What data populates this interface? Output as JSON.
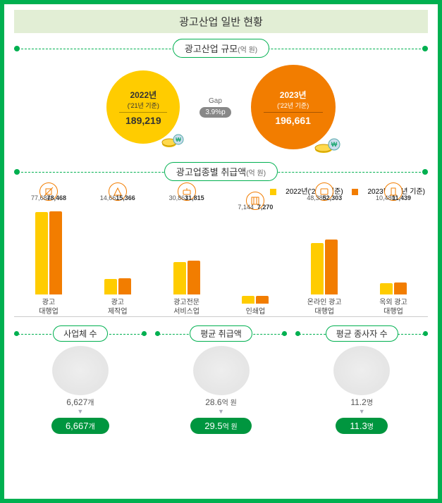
{
  "title": "광고산업 일반 현황",
  "section1": {
    "heading": "광고산업 규모",
    "unit": "(억 원)",
    "left": {
      "year": "2022년",
      "basis": "('21년 기준)",
      "value": "189,219",
      "bg": "#ffcc00"
    },
    "right": {
      "year": "2023년",
      "basis": "('22년 기준)",
      "value": "196,661",
      "bg": "#f27d00"
    },
    "gap_label": "Gap",
    "gap_value": "3.9%p"
  },
  "section2": {
    "heading": "광고업종별 취급액",
    "unit": "(억 원)",
    "legend": {
      "a": {
        "label": "2022년('21년 기준)",
        "color": "#ffcc00"
      },
      "b": {
        "label": "2023년('22년 기준)",
        "color": "#f27d00"
      }
    },
    "ymax": 80000,
    "categories": [
      {
        "name_l1": "광고",
        "name_l2": "대행업",
        "a": 77684,
        "b": 78468,
        "a_txt": "77,684",
        "b_txt": "78,468"
      },
      {
        "name_l1": "광고",
        "name_l2": "제작업",
        "a": 14661,
        "b": 15366,
        "a_txt": "14,661",
        "b_txt": "15,366"
      },
      {
        "name_l1": "광고전문",
        "name_l2": "서비스업",
        "a": 30861,
        "b": 31815,
        "a_txt": "30,861",
        "b_txt": "31,815"
      },
      {
        "name_l1": "인쇄업",
        "name_l2": "",
        "a": 7144,
        "b": 7270,
        "a_txt": "7,144",
        "b_txt": "7,270"
      },
      {
        "name_l1": "온라인 광고",
        "name_l2": "대행업",
        "a": 48388,
        "b": 52303,
        "a_txt": "48,388",
        "b_txt": "52,303"
      },
      {
        "name_l1": "옥외 광고",
        "name_l2": "대행업",
        "a": 10480,
        "b": 11439,
        "a_txt": "10,480",
        "b_txt": "11,439"
      }
    ]
  },
  "section3": {
    "metrics": [
      {
        "label": "사업체 수",
        "prev": "6,627",
        "prev_unit": "개",
        "curr": "6,667",
        "curr_unit": "개"
      },
      {
        "label": "평균 취급액",
        "prev": "28.6",
        "prev_unit": "억 원",
        "curr": "29.5",
        "curr_unit": "억 원"
      },
      {
        "label": "평균 종사자 수",
        "prev": "11.2",
        "prev_unit": "명",
        "curr": "11.3",
        "curr_unit": "명"
      }
    ]
  }
}
